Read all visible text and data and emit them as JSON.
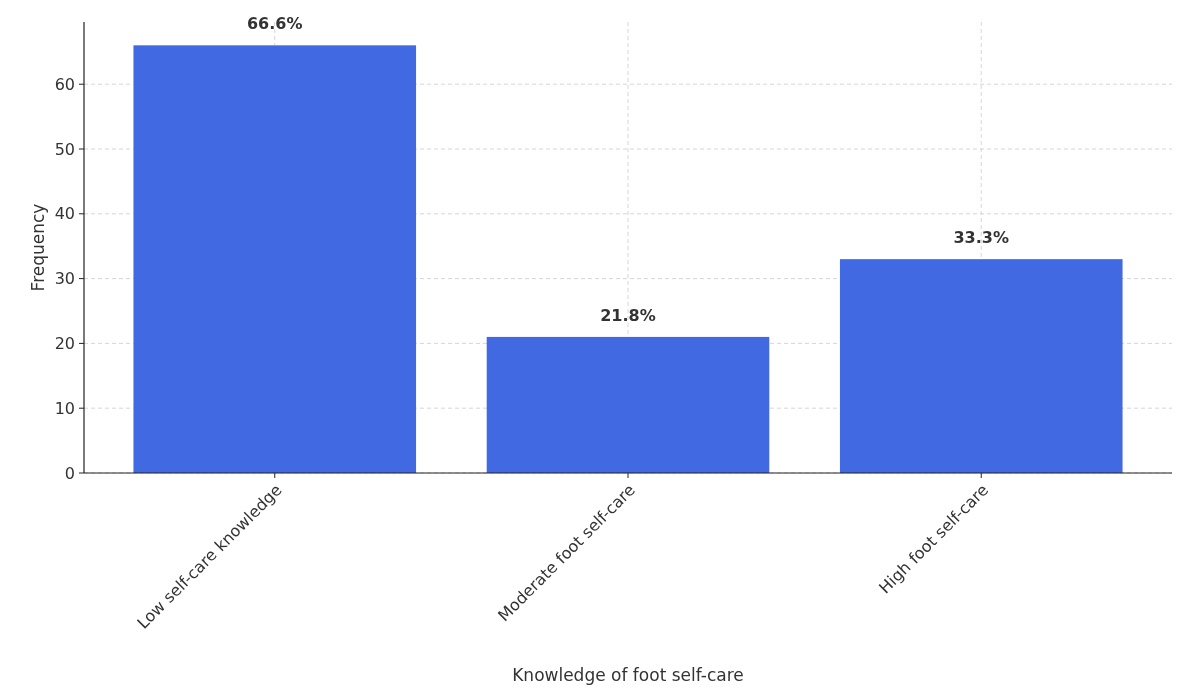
{
  "chart_data": {
    "type": "bar",
    "xlabel": "Knowledge of foot self-care",
    "ylabel": "Frequency",
    "categories": [
      "Low self-care knowledge",
      "Moderate foot self-care",
      "High foot self-care"
    ],
    "values": [
      66,
      21,
      33
    ],
    "color": "#4169e1",
    "annotations": [
      {
        "text": "66.6%",
        "x": "Low self-care knowledge",
        "y": 66
      },
      {
        "text": "21.8%",
        "x": "Moderate foot self-care",
        "y": 21
      },
      {
        "text": "33.3%",
        "x": "High foot self-care",
        "y": 33
      }
    ],
    "ylim": [
      0,
      69.6
    ],
    "yticks": [
      0,
      10,
      20,
      30,
      40,
      50,
      60
    ],
    "grid": true
  }
}
